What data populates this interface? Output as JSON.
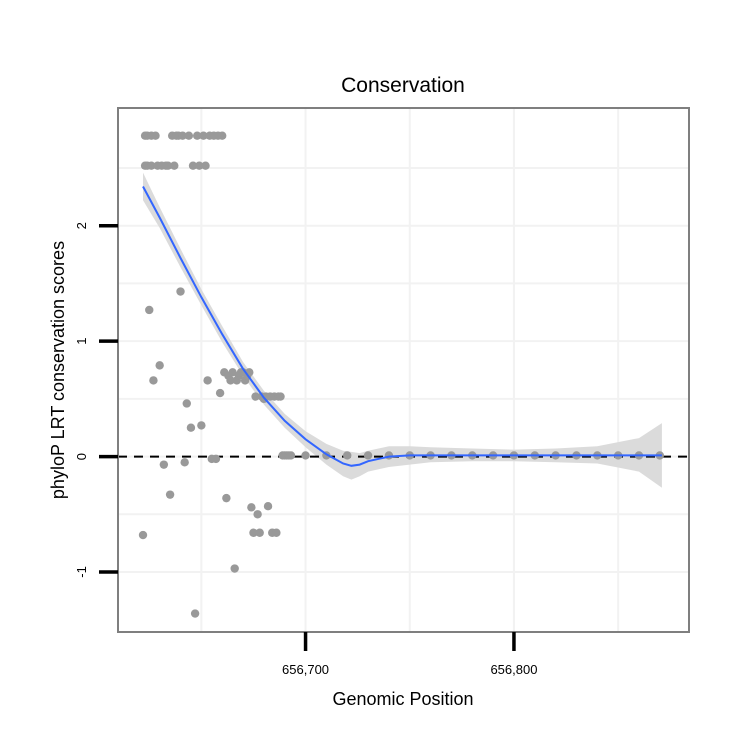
{
  "chart_data": {
    "type": "scatter",
    "title": "Conservation",
    "xlabel": "Genomic Position",
    "ylabel": "phyloP LRT conservation scores",
    "xlim": [
      656610,
      656884
    ],
    "ylim": [
      -1.52,
      3.02
    ],
    "x_ticks": [
      {
        "value": 656700,
        "label": "656,700"
      },
      {
        "value": 656800,
        "label": "656,800"
      }
    ],
    "y_ticks": [
      {
        "value": -1,
        "label": "-1"
      },
      {
        "value": 0,
        "label": "0"
      },
      {
        "value": 1,
        "label": "1"
      },
      {
        "value": 2,
        "label": "2"
      }
    ],
    "reference_line": {
      "y": 0,
      "style": "dashed"
    },
    "colors": {
      "points": "#999999",
      "smooth": "#3366ff",
      "ribbon": "#d9d9d9",
      "panel_border": "#7f7f7f",
      "grid": "#f2f2f2"
    },
    "points": {
      "x": [
        656622,
        656623,
        656623,
        656624,
        656624,
        656625,
        656626,
        656626,
        656627,
        656628,
        656629,
        656630,
        656631,
        656632,
        656633,
        656634,
        656635,
        656636,
        656637,
        656638,
        656639,
        656640,
        656641,
        656642,
        656643,
        656644,
        656645,
        656646,
        656647,
        656648,
        656649,
        656650,
        656651,
        656652,
        656653,
        656654,
        656655,
        656656,
        656657,
        656658,
        656659,
        656660,
        656661,
        656662,
        656663,
        656664,
        656665,
        656666,
        656667,
        656668,
        656669,
        656670,
        656671,
        656672,
        656673,
        656674,
        656675,
        656676,
        656677,
        656678,
        656679,
        656680,
        656681,
        656682,
        656683,
        656684,
        656685,
        656686,
        656687,
        656688,
        656689,
        656690,
        656691,
        656692,
        656693,
        656700,
        656710,
        656720,
        656730,
        656740,
        656750,
        656760,
        656770,
        656780,
        656790,
        656800,
        656810,
        656820,
        656830,
        656840,
        656850,
        656860,
        656870
      ],
      "y": [
        -0.68,
        2.52,
        2.78,
        2.52,
        2.78,
        1.27,
        2.78,
        2.52,
        0.66,
        2.78,
        2.52,
        0.79,
        2.52,
        -0.07,
        2.52,
        2.52,
        -0.33,
        2.78,
        2.52,
        2.78,
        2.78,
        1.43,
        2.78,
        -0.05,
        0.46,
        2.78,
        0.25,
        2.52,
        -1.36,
        2.78,
        2.52,
        0.27,
        2.78,
        2.52,
        0.66,
        2.78,
        -0.02,
        2.78,
        -0.02,
        2.78,
        0.55,
        2.78,
        0.73,
        -0.36,
        0.7,
        0.66,
        0.73,
        -0.97,
        0.66,
        0.7,
        0.73,
        0.73,
        0.66,
        0.7,
        0.73,
        -0.44,
        -0.66,
        0.52,
        -0.5,
        -0.66,
        0.52,
        0.5,
        0.52,
        -0.43,
        0.52,
        -0.66,
        0.52,
        -0.66,
        0.52,
        0.52,
        0.01,
        0.01,
        0.01,
        0.01,
        0.01,
        0.01,
        0.01,
        0.01,
        0.01,
        0.01,
        0.01,
        0.01,
        0.01,
        0.01,
        0.01,
        0.01,
        0.01,
        0.01,
        0.01,
        0.01,
        0.01,
        0.01,
        0.01
      ]
    },
    "smooth": {
      "x": [
        656622,
        656630,
        656640,
        656650,
        656660,
        656670,
        656680,
        656690,
        656700,
        656710,
        656718,
        656722,
        656726,
        656730,
        656740,
        656750,
        656760,
        656780,
        656800,
        656820,
        656840,
        656860,
        656871
      ],
      "y": [
        2.34,
        2.07,
        1.72,
        1.38,
        1.06,
        0.76,
        0.51,
        0.31,
        0.15,
        0.02,
        -0.06,
        -0.08,
        -0.07,
        -0.04,
        0.0,
        0.01,
        0.01,
        0.01,
        0.01,
        0.01,
        0.01,
        0.01,
        0.01
      ],
      "lower": [
        2.22,
        1.98,
        1.64,
        1.31,
        0.99,
        0.7,
        0.45,
        0.25,
        0.08,
        -0.07,
        -0.17,
        -0.2,
        -0.17,
        -0.13,
        -0.09,
        -0.07,
        -0.05,
        -0.04,
        -0.04,
        -0.05,
        -0.06,
        -0.13,
        -0.27
      ],
      "upper": [
        2.46,
        2.16,
        1.8,
        1.45,
        1.13,
        0.82,
        0.57,
        0.37,
        0.22,
        0.11,
        0.05,
        0.04,
        0.03,
        0.05,
        0.09,
        0.09,
        0.08,
        0.07,
        0.06,
        0.07,
        0.09,
        0.16,
        0.29
      ]
    }
  }
}
